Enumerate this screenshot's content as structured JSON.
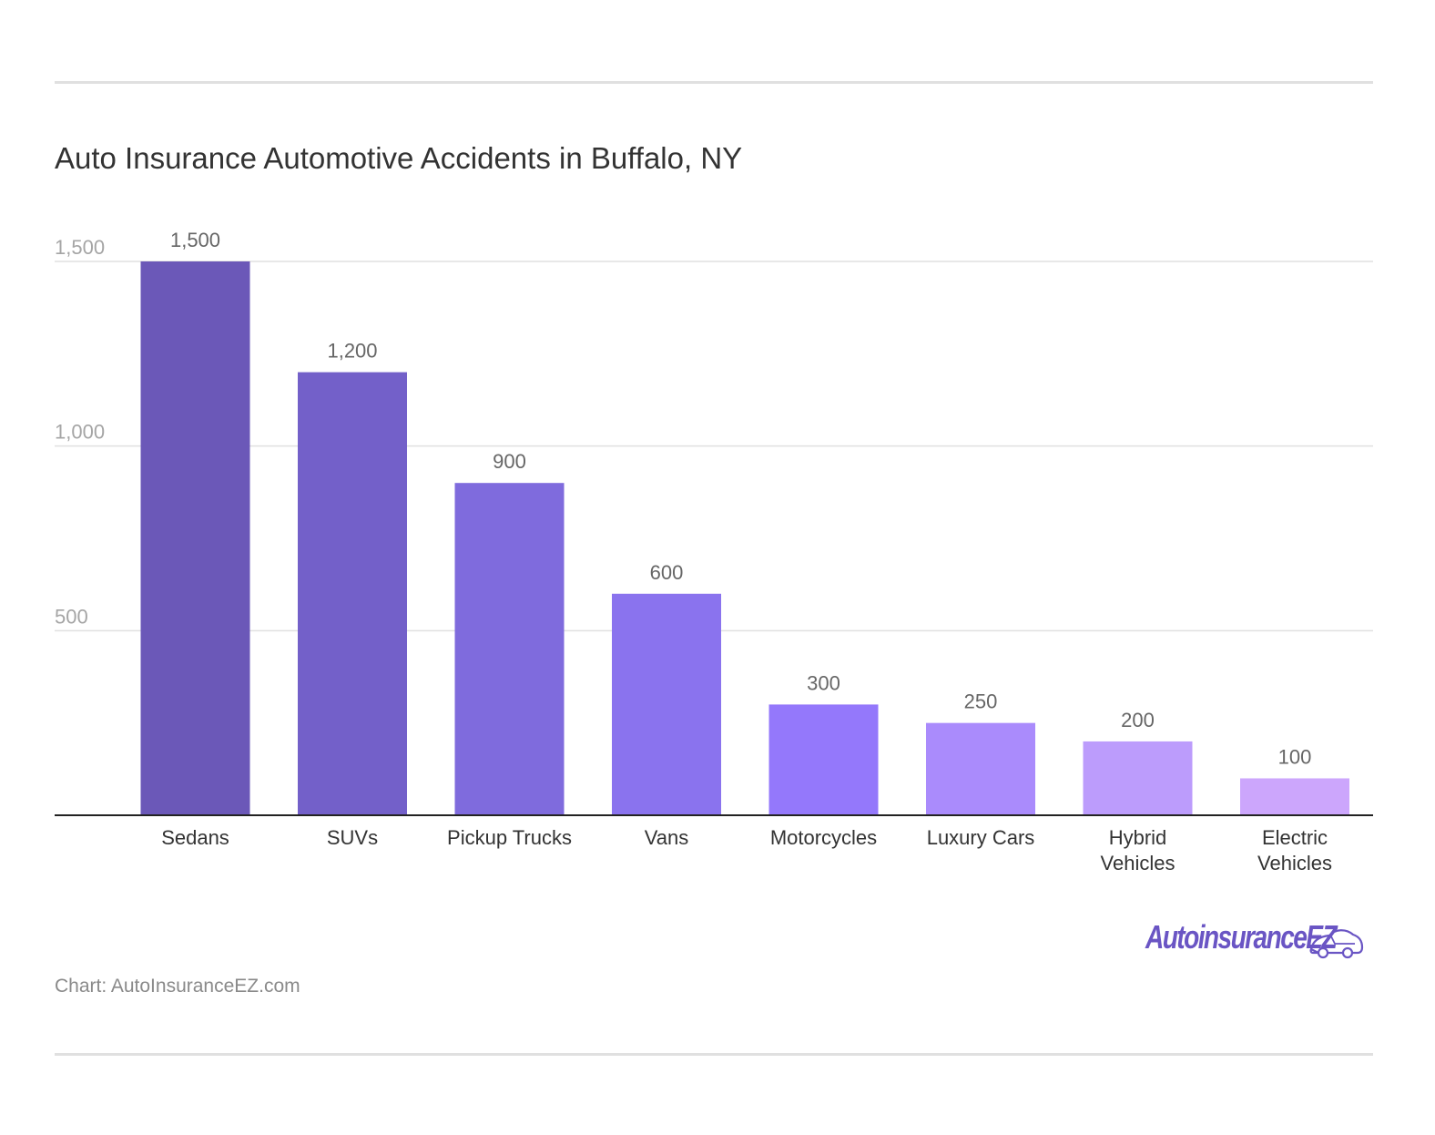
{
  "title": "Auto Insurance Automotive Accidents in Buffalo, NY",
  "source": "Chart: AutoInsuranceEZ.com",
  "logo": {
    "text": "AutoinsuranceEZ",
    "icon": "car-icon"
  },
  "colors": {
    "bars": [
      "#6b58b8",
      "#7360c9",
      "#7f6bdd",
      "#8a73ee",
      "#9478fb",
      "#aa8bfc",
      "#bc9cfc",
      "#cca6fc"
    ],
    "grid": "#e0e0e0",
    "axis": "#222222"
  },
  "chart_data": {
    "type": "bar",
    "title": "Auto Insurance Automotive Accidents in Buffalo, NY",
    "categories": [
      [
        "Sedans"
      ],
      [
        "SUVs"
      ],
      [
        "Pickup Trucks"
      ],
      [
        "Vans"
      ],
      [
        "Motorcycles"
      ],
      [
        "Luxury Cars"
      ],
      [
        "Hybrid",
        "Vehicles"
      ],
      [
        "Electric",
        "Vehicles"
      ]
    ],
    "values": [
      1500,
      1200,
      900,
      600,
      300,
      250,
      200,
      100
    ],
    "value_labels": [
      "1,500",
      "1,200",
      "900",
      "600",
      "300",
      "250",
      "200",
      "100"
    ],
    "yticks": [
      {
        "value": 500,
        "label": "500"
      },
      {
        "value": 1000,
        "label": "1,000"
      },
      {
        "value": 1500,
        "label": "1,500"
      }
    ],
    "ylim": [
      0,
      1500
    ],
    "xlabel": "",
    "ylabel": "",
    "grid": true,
    "legend": "none"
  }
}
